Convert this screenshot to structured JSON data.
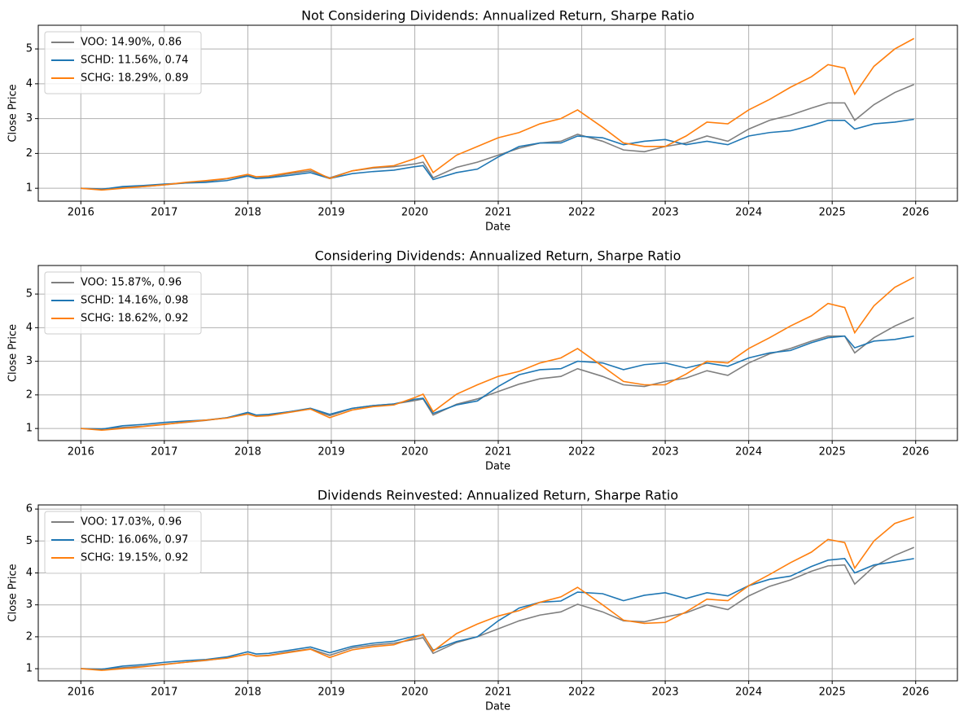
{
  "chart_data": [
    {
      "type": "line",
      "title": "Not Considering Dividends: Annualized Return, Sharpe Ratio",
      "xlabel": "Date",
      "ylabel": "Close Price",
      "grid": true,
      "legend": "upper left",
      "xlim": [
        2015.49,
        2026.5
      ],
      "xticks": [
        2016,
        2017,
        2018,
        2019,
        2020,
        2021,
        2022,
        2023,
        2024,
        2025,
        2026
      ],
      "ylim": [
        0.63,
        5.68
      ],
      "yticks": [
        1,
        2,
        3,
        4,
        5
      ],
      "x": [
        2016,
        2016.25,
        2016.5,
        2016.75,
        2017,
        2017.25,
        2017.5,
        2017.75,
        2018,
        2018.1,
        2018.25,
        2018.5,
        2018.75,
        2018.98,
        2019.25,
        2019.5,
        2019.75,
        2020,
        2020.1,
        2020.22,
        2020.5,
        2020.75,
        2021,
        2021.25,
        2021.5,
        2021.75,
        2021.95,
        2022.25,
        2022.5,
        2022.75,
        2023,
        2023.25,
        2023.5,
        2023.75,
        2024,
        2024.25,
        2024.5,
        2024.75,
        2024.95,
        2025.15,
        2025.27,
        2025.5,
        2025.75,
        2025.98
      ],
      "series": [
        {
          "name": "VOO: 14.90%, 0.86",
          "color": "#7f7f7f",
          "values": [
            1,
            0.98,
            1.02,
            1.05,
            1.1,
            1.15,
            1.2,
            1.27,
            1.38,
            1.32,
            1.33,
            1.42,
            1.5,
            1.3,
            1.5,
            1.58,
            1.62,
            1.7,
            1.75,
            1.3,
            1.6,
            1.75,
            1.95,
            2.15,
            2.3,
            2.35,
            2.55,
            2.35,
            2.1,
            2.05,
            2.2,
            2.3,
            2.5,
            2.35,
            2.7,
            2.95,
            3.1,
            3.3,
            3.45,
            3.45,
            2.95,
            3.4,
            3.75,
            3.98
          ]
        },
        {
          "name": "SCHD: 11.56%, 0.74",
          "color": "#1f77b4",
          "values": [
            1,
            0.97,
            1.05,
            1.08,
            1.12,
            1.15,
            1.17,
            1.22,
            1.35,
            1.28,
            1.3,
            1.37,
            1.45,
            1.28,
            1.42,
            1.48,
            1.52,
            1.62,
            1.65,
            1.25,
            1.45,
            1.55,
            1.9,
            2.2,
            2.3,
            2.3,
            2.5,
            2.45,
            2.25,
            2.35,
            2.4,
            2.25,
            2.35,
            2.25,
            2.5,
            2.6,
            2.65,
            2.8,
            2.95,
            2.95,
            2.7,
            2.85,
            2.9,
            2.98
          ]
        },
        {
          "name": "SCHG: 18.29%, 0.89",
          "color": "#ff7f0e",
          "values": [
            1,
            0.95,
            1.0,
            1.05,
            1.1,
            1.17,
            1.22,
            1.28,
            1.4,
            1.33,
            1.35,
            1.45,
            1.55,
            1.28,
            1.5,
            1.6,
            1.65,
            1.85,
            1.95,
            1.45,
            1.95,
            2.2,
            2.45,
            2.6,
            2.85,
            3.0,
            3.25,
            2.75,
            2.3,
            2.2,
            2.2,
            2.5,
            2.9,
            2.85,
            3.25,
            3.55,
            3.9,
            4.2,
            4.55,
            4.45,
            3.7,
            4.5,
            5.0,
            5.3
          ]
        }
      ]
    },
    {
      "type": "line",
      "title": "Considering Dividends: Annualized Return, Sharpe Ratio",
      "xlabel": "Date",
      "ylabel": "Close Price",
      "grid": true,
      "legend": "upper left",
      "xlim": [
        2015.49,
        2026.5
      ],
      "xticks": [
        2016,
        2017,
        2018,
        2019,
        2020,
        2021,
        2022,
        2023,
        2024,
        2025,
        2026
      ],
      "ylim": [
        0.64,
        5.85
      ],
      "yticks": [
        1,
        2,
        3,
        4,
        5
      ],
      "x": [
        2016,
        2016.25,
        2016.5,
        2016.75,
        2017,
        2017.25,
        2017.5,
        2017.75,
        2018,
        2018.1,
        2018.25,
        2018.5,
        2018.75,
        2018.98,
        2019.25,
        2019.5,
        2019.75,
        2020,
        2020.1,
        2020.22,
        2020.5,
        2020.75,
        2021,
        2021.25,
        2021.5,
        2021.75,
        2021.95,
        2022.25,
        2022.5,
        2022.75,
        2023,
        2023.25,
        2023.5,
        2023.75,
        2024,
        2024.25,
        2024.5,
        2024.75,
        2024.95,
        2025.15,
        2025.27,
        2025.5,
        2025.75,
        2025.98
      ],
      "series": [
        {
          "name": "VOO: 15.87%, 0.96",
          "color": "#7f7f7f",
          "values": [
            1,
            0.99,
            1.03,
            1.07,
            1.13,
            1.18,
            1.24,
            1.32,
            1.44,
            1.38,
            1.4,
            1.5,
            1.58,
            1.38,
            1.6,
            1.68,
            1.73,
            1.83,
            1.88,
            1.4,
            1.72,
            1.88,
            2.1,
            2.32,
            2.48,
            2.55,
            2.78,
            2.55,
            2.3,
            2.25,
            2.4,
            2.5,
            2.72,
            2.58,
            2.95,
            3.22,
            3.38,
            3.6,
            3.75,
            3.75,
            3.25,
            3.7,
            4.05,
            4.3
          ]
        },
        {
          "name": "SCHD: 14.16%, 0.98",
          "color": "#1f77b4",
          "values": [
            1,
            0.98,
            1.08,
            1.12,
            1.18,
            1.22,
            1.25,
            1.32,
            1.48,
            1.4,
            1.42,
            1.5,
            1.6,
            1.42,
            1.6,
            1.68,
            1.73,
            1.87,
            1.9,
            1.45,
            1.7,
            1.82,
            2.25,
            2.6,
            2.75,
            2.78,
            3.0,
            2.95,
            2.75,
            2.9,
            2.95,
            2.8,
            2.95,
            2.85,
            3.1,
            3.25,
            3.32,
            3.55,
            3.7,
            3.75,
            3.4,
            3.6,
            3.65,
            3.75
          ]
        },
        {
          "name": "SCHG: 18.62%, 0.92",
          "color": "#ff7f0e",
          "values": [
            1,
            0.95,
            1.0,
            1.06,
            1.12,
            1.19,
            1.25,
            1.31,
            1.43,
            1.36,
            1.38,
            1.48,
            1.58,
            1.32,
            1.55,
            1.65,
            1.7,
            1.92,
            2.02,
            1.5,
            2.02,
            2.3,
            2.55,
            2.7,
            2.95,
            3.1,
            3.38,
            2.85,
            2.4,
            2.3,
            2.3,
            2.62,
            3.0,
            2.95,
            3.38,
            3.7,
            4.05,
            4.35,
            4.72,
            4.6,
            3.85,
            4.65,
            5.2,
            5.5
          ]
        }
      ]
    },
    {
      "type": "line",
      "title": "Dividends Reinvested: Annualized Return, Sharpe Ratio",
      "xlabel": "Date",
      "ylabel": "Close Price",
      "grid": true,
      "legend": "upper left",
      "xlim": [
        2015.49,
        2026.5
      ],
      "xticks": [
        2016,
        2017,
        2018,
        2019,
        2020,
        2021,
        2022,
        2023,
        2024,
        2025,
        2026
      ],
      "ylim": [
        0.62,
        6.13
      ],
      "yticks": [
        1,
        2,
        3,
        4,
        5,
        6
      ],
      "x": [
        2016,
        2016.25,
        2016.5,
        2016.75,
        2017,
        2017.25,
        2017.5,
        2017.75,
        2018,
        2018.1,
        2018.25,
        2018.5,
        2018.75,
        2018.98,
        2019.25,
        2019.5,
        2019.75,
        2020,
        2020.1,
        2020.22,
        2020.5,
        2020.75,
        2021,
        2021.25,
        2021.5,
        2021.75,
        2021.95,
        2022.25,
        2022.5,
        2022.75,
        2023,
        2023.25,
        2023.5,
        2023.75,
        2024,
        2024.25,
        2024.5,
        2024.75,
        2024.95,
        2025.15,
        2025.27,
        2025.5,
        2025.75,
        2025.98
      ],
      "series": [
        {
          "name": "VOO: 17.03%, 0.96",
          "color": "#7f7f7f",
          "values": [
            1,
            0.99,
            1.03,
            1.08,
            1.14,
            1.2,
            1.26,
            1.34,
            1.46,
            1.4,
            1.42,
            1.53,
            1.62,
            1.42,
            1.65,
            1.74,
            1.8,
            1.92,
            1.97,
            1.48,
            1.82,
            2.0,
            2.25,
            2.5,
            2.68,
            2.78,
            3.02,
            2.78,
            2.5,
            2.47,
            2.62,
            2.75,
            3.0,
            2.85,
            3.28,
            3.58,
            3.78,
            4.05,
            4.22,
            4.25,
            3.65,
            4.2,
            4.55,
            4.8
          ]
        },
        {
          "name": "SCHD: 16.06%, 0.97",
          "color": "#1f77b4",
          "values": [
            1,
            0.98,
            1.08,
            1.13,
            1.2,
            1.25,
            1.29,
            1.37,
            1.53,
            1.46,
            1.48,
            1.58,
            1.68,
            1.5,
            1.7,
            1.8,
            1.86,
            2.02,
            2.06,
            1.58,
            1.85,
            2.0,
            2.5,
            2.9,
            3.08,
            3.12,
            3.4,
            3.35,
            3.13,
            3.3,
            3.38,
            3.2,
            3.38,
            3.28,
            3.6,
            3.8,
            3.9,
            4.2,
            4.4,
            4.45,
            4.0,
            4.25,
            4.35,
            4.45
          ]
        },
        {
          "name": "SCHG: 19.15%, 0.92",
          "color": "#ff7f0e",
          "values": [
            1,
            0.95,
            1.0,
            1.06,
            1.13,
            1.2,
            1.27,
            1.33,
            1.46,
            1.39,
            1.41,
            1.51,
            1.61,
            1.35,
            1.59,
            1.69,
            1.75,
            1.98,
            2.08,
            1.55,
            2.1,
            2.4,
            2.65,
            2.82,
            3.08,
            3.25,
            3.55,
            3.0,
            2.52,
            2.42,
            2.45,
            2.78,
            3.18,
            3.13,
            3.6,
            3.95,
            4.32,
            4.65,
            5.05,
            4.95,
            4.15,
            5.0,
            5.55,
            5.75
          ]
        }
      ]
    }
  ]
}
